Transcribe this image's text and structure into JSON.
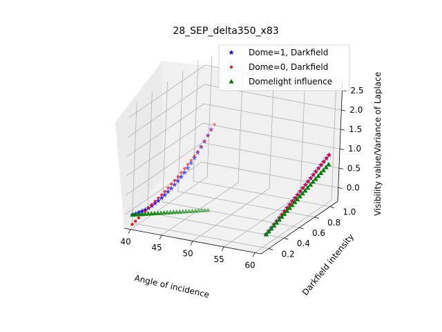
{
  "chart_data": {
    "type": "scatter",
    "projection": "3d",
    "title": "28_SEP_delta350_x83",
    "xlabel": "Angle of incidence",
    "ylabel": "Darkfield intensity",
    "zlabel": "Visibility value/Variance of Laplace",
    "x_ticks": [
      "40",
      "45",
      "50",
      "55",
      "60"
    ],
    "y_ticks": [
      "0.2",
      "0.4",
      "0.6",
      "0.8",
      "1.0"
    ],
    "z_ticks": [
      "0.0",
      "0.5",
      "1.0",
      "1.5",
      "2.0",
      "2.5"
    ],
    "xlim": [
      39,
      61
    ],
    "ylim": [
      0.1,
      1.1
    ],
    "zlim": [
      -0.35,
      2.75
    ],
    "grid": true,
    "legend_position": "top-right",
    "series": [
      {
        "name": "Dome=1, Darkfield",
        "marker": "star",
        "color": "#0000ff",
        "points_angle_axis": [
          [
            40.0,
            0.0
          ],
          [
            40.5,
            0.04
          ],
          [
            41.0,
            0.09
          ],
          [
            41.5,
            0.14
          ],
          [
            42.0,
            0.19
          ],
          [
            42.5,
            0.25
          ],
          [
            43.0,
            0.32
          ],
          [
            43.5,
            0.4
          ],
          [
            44.0,
            0.48
          ],
          [
            44.5,
            0.57
          ],
          [
            45.0,
            0.66
          ],
          [
            45.5,
            0.76
          ],
          [
            46.0,
            0.86
          ],
          [
            46.5,
            0.97
          ],
          [
            47.0,
            1.08
          ],
          [
            47.5,
            1.2
          ],
          [
            48.0,
            1.33
          ],
          [
            48.5,
            1.46
          ],
          [
            49.0,
            1.6
          ],
          [
            49.5,
            1.75
          ],
          [
            50.0,
            1.9
          ],
          [
            50.5,
            2.06
          ],
          [
            51.0,
            2.22
          ],
          [
            51.5,
            2.39
          ],
          [
            52.0,
            2.56
          ]
        ],
        "points_intensity_axis": [
          [
            0.2,
            0.0
          ],
          [
            0.233,
            0.04
          ],
          [
            0.267,
            0.08
          ],
          [
            0.3,
            0.12
          ],
          [
            0.333,
            0.16
          ],
          [
            0.367,
            0.2
          ],
          [
            0.4,
            0.24
          ],
          [
            0.433,
            0.28
          ],
          [
            0.467,
            0.32
          ],
          [
            0.5,
            0.36
          ],
          [
            0.533,
            0.4
          ],
          [
            0.567,
            0.44
          ],
          [
            0.6,
            0.48
          ],
          [
            0.633,
            0.52
          ],
          [
            0.667,
            0.56
          ],
          [
            0.7,
            0.6
          ],
          [
            0.733,
            0.64
          ],
          [
            0.767,
            0.68
          ],
          [
            0.8,
            0.72
          ],
          [
            0.833,
            0.76
          ],
          [
            0.867,
            0.8
          ],
          [
            0.9,
            0.84
          ],
          [
            0.933,
            0.88
          ],
          [
            0.967,
            0.92
          ],
          [
            1.0,
            0.96
          ]
        ]
      },
      {
        "name": "Dome=0, Darkfield",
        "marker": "dot",
        "color": "#ff0000",
        "points_angle_axis": [
          [
            40.0,
            -0.25
          ],
          [
            40.5,
            -0.15
          ],
          [
            41.0,
            -0.05
          ],
          [
            41.5,
            0.05
          ],
          [
            42.0,
            0.15
          ],
          [
            42.5,
            0.25
          ],
          [
            43.0,
            0.35
          ],
          [
            43.5,
            0.45
          ],
          [
            44.0,
            0.55
          ],
          [
            44.5,
            0.65
          ],
          [
            45.0,
            0.75
          ],
          [
            45.5,
            0.86
          ],
          [
            46.0,
            0.97
          ],
          [
            46.5,
            1.08
          ],
          [
            47.0,
            1.19
          ],
          [
            47.5,
            1.31
          ],
          [
            48.0,
            1.43
          ],
          [
            48.5,
            1.55
          ],
          [
            49.0,
            1.67
          ],
          [
            49.5,
            1.8
          ],
          [
            50.0,
            1.93
          ],
          [
            50.5,
            2.07
          ],
          [
            51.0,
            2.22
          ],
          [
            51.5,
            2.38
          ],
          [
            52.0,
            2.54
          ],
          [
            52.5,
            2.7
          ]
        ],
        "points_intensity_axis": [
          [
            0.2,
            0.0
          ],
          [
            0.233,
            0.04
          ],
          [
            0.267,
            0.08
          ],
          [
            0.3,
            0.12
          ],
          [
            0.333,
            0.16
          ],
          [
            0.367,
            0.2
          ],
          [
            0.4,
            0.24
          ],
          [
            0.433,
            0.28
          ],
          [
            0.467,
            0.32
          ],
          [
            0.5,
            0.36
          ],
          [
            0.533,
            0.4
          ],
          [
            0.567,
            0.44
          ],
          [
            0.6,
            0.48
          ],
          [
            0.633,
            0.52
          ],
          [
            0.667,
            0.56
          ],
          [
            0.7,
            0.6
          ],
          [
            0.733,
            0.64
          ],
          [
            0.767,
            0.68
          ],
          [
            0.8,
            0.72
          ],
          [
            0.833,
            0.76
          ],
          [
            0.867,
            0.8
          ],
          [
            0.9,
            0.84
          ],
          [
            0.933,
            0.88
          ],
          [
            0.967,
            0.92
          ],
          [
            1.0,
            0.96
          ]
        ]
      },
      {
        "name": "Domelight influence",
        "marker": "triangle",
        "color": "#008000",
        "points_angle_axis": [
          [
            40.0,
            0.0
          ],
          [
            40.5,
            0.02
          ],
          [
            41.0,
            0.04
          ],
          [
            41.5,
            0.06
          ],
          [
            42.0,
            0.08
          ],
          [
            42.5,
            0.1
          ],
          [
            43.0,
            0.12
          ],
          [
            43.5,
            0.14
          ],
          [
            44.0,
            0.16
          ],
          [
            44.5,
            0.18
          ],
          [
            45.0,
            0.2
          ],
          [
            45.5,
            0.22
          ],
          [
            46.0,
            0.24
          ],
          [
            46.5,
            0.26
          ],
          [
            47.0,
            0.28
          ],
          [
            47.5,
            0.3
          ],
          [
            48.0,
            0.32
          ],
          [
            48.5,
            0.34
          ],
          [
            49.0,
            0.36
          ],
          [
            49.5,
            0.38
          ],
          [
            50.0,
            0.4
          ],
          [
            50.5,
            0.42
          ],
          [
            51.0,
            0.44
          ],
          [
            51.5,
            0.46
          ],
          [
            52.0,
            0.48
          ]
        ],
        "points_intensity_axis": [
          [
            0.2,
            0.0
          ],
          [
            0.233,
            0.03
          ],
          [
            0.267,
            0.06
          ],
          [
            0.3,
            0.09
          ],
          [
            0.333,
            0.12
          ],
          [
            0.367,
            0.15
          ],
          [
            0.4,
            0.18
          ],
          [
            0.433,
            0.21
          ],
          [
            0.467,
            0.24
          ],
          [
            0.5,
            0.27
          ],
          [
            0.533,
            0.3
          ],
          [
            0.567,
            0.33
          ],
          [
            0.6,
            0.36
          ],
          [
            0.633,
            0.39
          ],
          [
            0.667,
            0.42
          ],
          [
            0.7,
            0.45
          ],
          [
            0.733,
            0.48
          ],
          [
            0.767,
            0.51
          ],
          [
            0.8,
            0.54
          ],
          [
            0.833,
            0.57
          ],
          [
            0.867,
            0.6
          ],
          [
            0.9,
            0.63
          ],
          [
            0.933,
            0.66
          ],
          [
            0.967,
            0.69
          ],
          [
            1.0,
            0.72
          ]
        ]
      }
    ]
  }
}
